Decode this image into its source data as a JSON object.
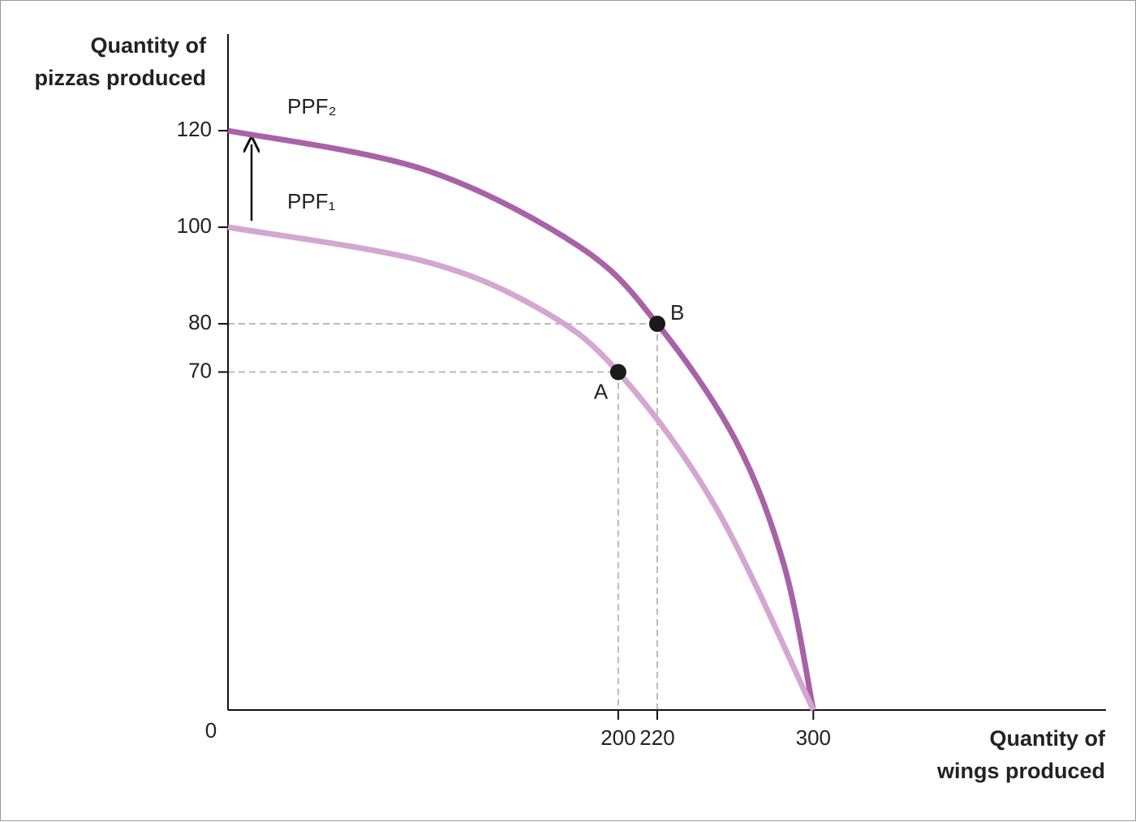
{
  "chart_data": {
    "type": "line",
    "y_label": [
      "Quantity of",
      "pizzas produced"
    ],
    "x_label": [
      "Quantity of",
      "wings produced"
    ],
    "origin_label": "0",
    "xlim": [
      0,
      450
    ],
    "ylim": [
      0,
      140
    ],
    "xticks": [
      200,
      220,
      300
    ],
    "yticks": [
      70,
      80,
      100,
      120
    ],
    "series": [
      {
        "name": "PPF₂",
        "color": "#a862a8",
        "x": [
          0,
          100,
          180,
          220,
          260,
          285,
          300
        ],
        "values": [
          120,
          112,
          96,
          80,
          56,
          30,
          0
        ]
      },
      {
        "name": "PPF₁",
        "color": "#d4a6d1",
        "x": [
          0,
          100,
          160,
          200,
          250,
          300
        ],
        "values": [
          100,
          93,
          83,
          70,
          42,
          0
        ]
      }
    ],
    "points": [
      {
        "label": "A",
        "x": 200,
        "y": 70
      },
      {
        "label": "B",
        "x": 220,
        "y": 80
      }
    ]
  }
}
